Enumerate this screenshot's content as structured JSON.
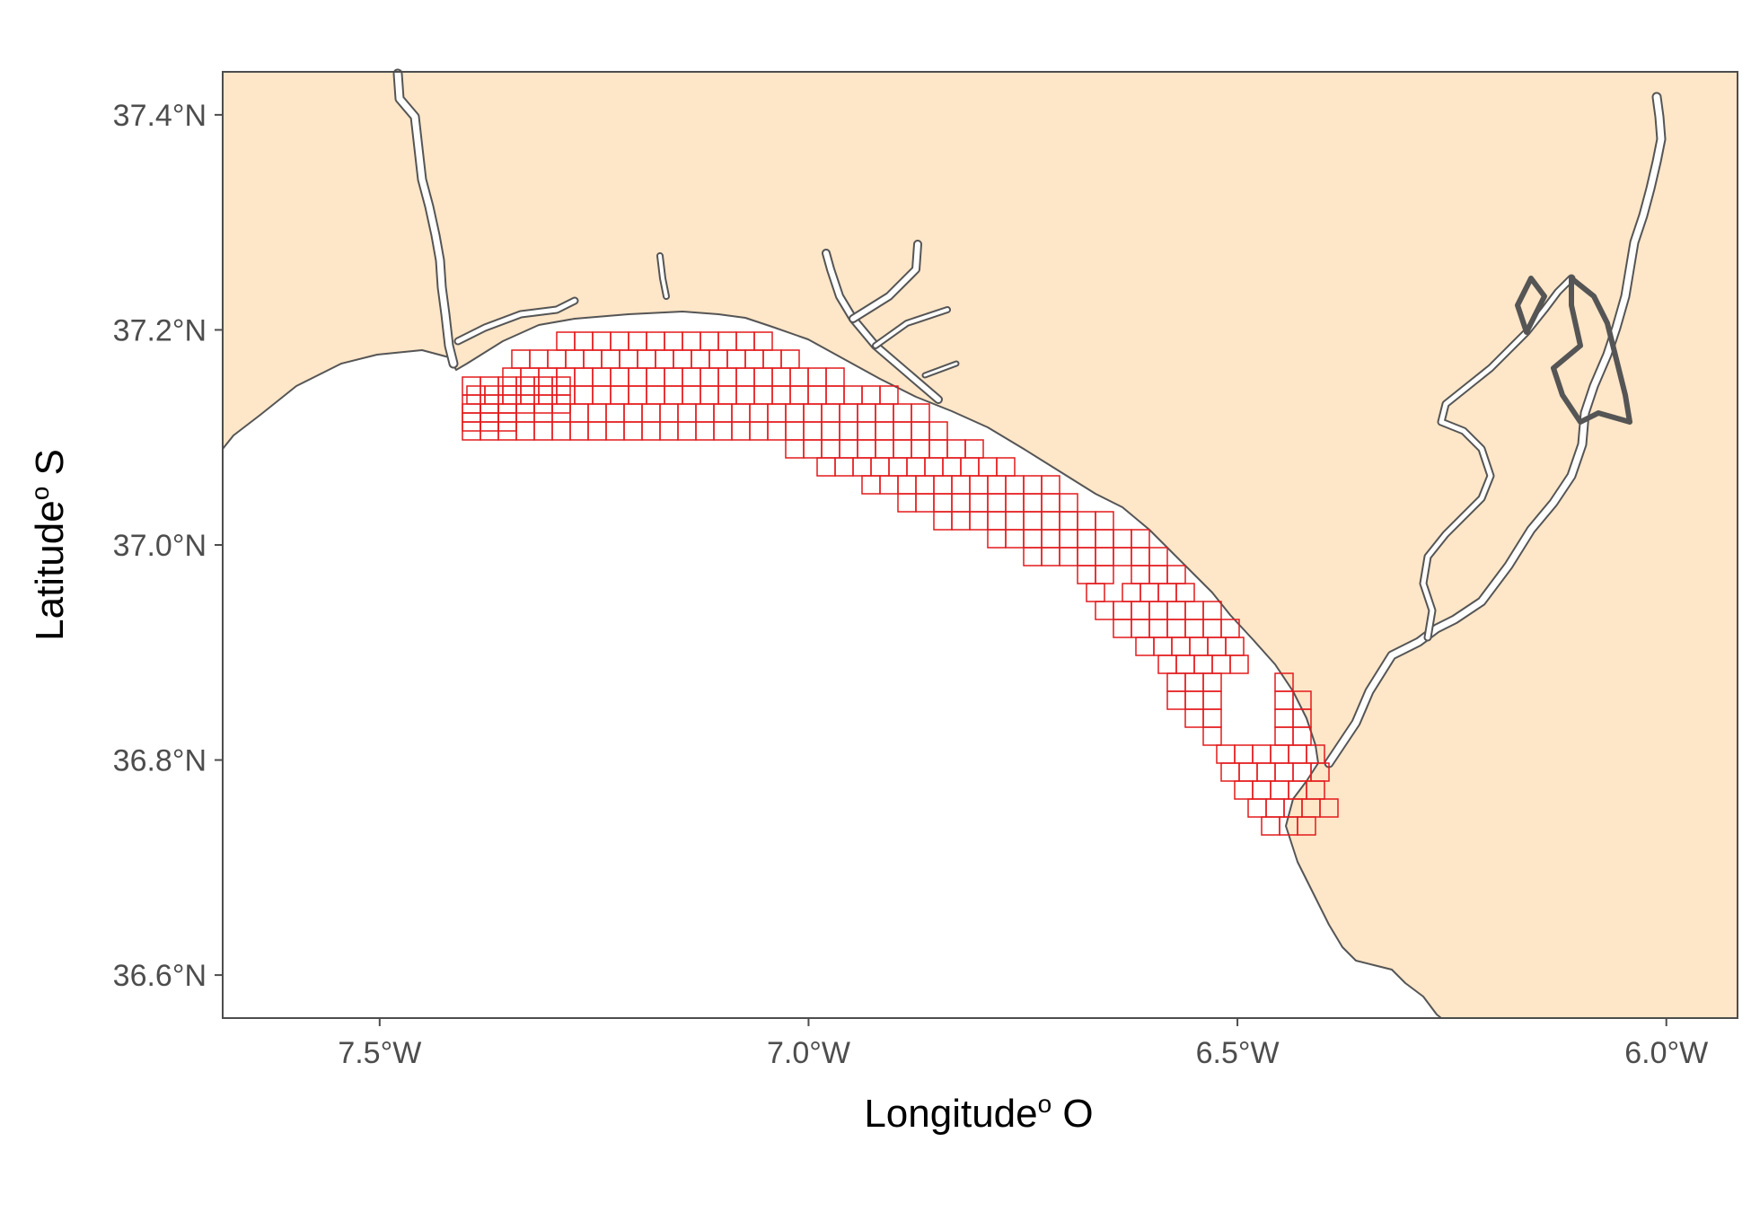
{
  "figure": {
    "x_axis_title": "Longitude",
    "x_axis_title_sup": "o",
    "x_axis_title_suffix": " O",
    "y_axis_title": "Latitude",
    "y_axis_title_sup": "o",
    "y_axis_title_suffix": " S"
  },
  "colors": {
    "land": "#FEE6C8",
    "sea": "#FFFFFF",
    "coastline": "#555555",
    "grid_cells": "#E41A1C",
    "panel_border": "#4d4d4d"
  },
  "chart_data": {
    "type": "map",
    "x_ticks": [
      {
        "value": -7.5,
        "label": "7.5°W"
      },
      {
        "value": -7.0,
        "label": "7.0°W"
      },
      {
        "value": -6.5,
        "label": "6.5°W"
      },
      {
        "value": -6.0,
        "label": "6.0°W"
      }
    ],
    "y_ticks": [
      {
        "value": 37.4,
        "label": "37.4°N"
      },
      {
        "value": 37.2,
        "label": "37.2°N"
      },
      {
        "value": 37.0,
        "label": "37.0°N"
      },
      {
        "value": 36.8,
        "label": "36.8°N"
      },
      {
        "value": 36.6,
        "label": "36.6°N"
      }
    ],
    "xlim": [
      -7.683,
      -5.917
    ],
    "ylim": [
      36.56,
      37.44
    ],
    "grid": false,
    "layers": [
      "land polygons (coastline, Guadiana, Odiel/Tinto, Piedras, Guadalquivir estuaries)",
      "red survey grid cells along coast"
    ]
  }
}
